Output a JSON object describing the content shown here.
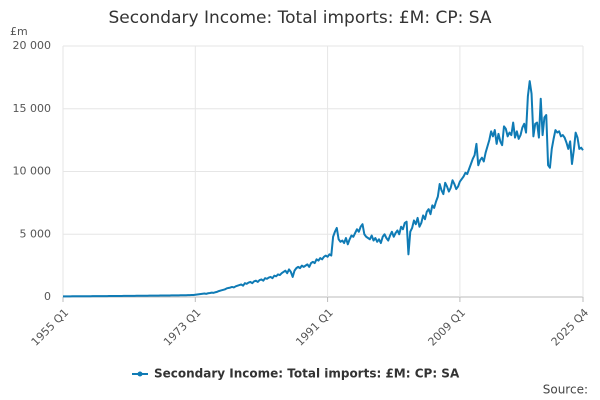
{
  "chart_data": {
    "type": "line",
    "title": "Secondary Income: Total imports: £M: CP: SA",
    "y_unit": "£m",
    "source": "Source:",
    "categories": [
      "1955 Q1",
      null,
      null,
      null,
      null,
      null,
      null,
      null,
      null,
      null,
      null,
      null,
      null,
      null,
      null,
      null,
      null,
      null,
      null,
      null,
      null,
      null,
      null,
      null,
      null,
      null,
      null,
      null,
      null,
      null,
      null,
      null,
      null,
      null,
      null,
      null,
      null,
      null,
      null,
      null,
      null,
      null,
      null,
      null,
      null,
      null,
      null,
      null,
      null,
      null,
      null,
      null,
      null,
      null,
      null,
      null,
      null,
      null,
      null,
      null,
      null,
      null,
      null,
      null,
      null,
      null,
      null,
      null,
      null,
      null,
      null,
      null,
      "1973 Q1",
      null,
      null,
      null,
      null,
      null,
      null,
      null,
      null,
      null,
      null,
      null,
      null,
      null,
      null,
      null,
      null,
      null,
      null,
      null,
      null,
      null,
      null,
      null,
      null,
      null,
      null,
      null,
      null,
      null,
      null,
      null,
      null,
      null,
      null,
      null,
      null,
      null,
      null,
      null,
      null,
      null,
      null,
      null,
      null,
      null,
      null,
      null,
      null,
      null,
      null,
      null,
      null,
      null,
      null,
      null,
      null,
      null,
      null,
      null,
      null,
      null,
      null,
      null,
      null,
      null,
      null,
      null,
      null,
      null,
      null,
      null,
      "1991 Q1",
      null,
      null,
      null,
      null,
      null,
      null,
      null,
      null,
      null,
      null,
      null,
      null,
      null,
      null,
      null,
      null,
      null,
      null,
      null,
      null,
      null,
      null,
      null,
      null,
      null,
      null,
      null,
      null,
      null,
      null,
      null,
      null,
      null,
      null,
      null,
      null,
      null,
      null,
      null,
      null,
      null,
      null,
      null,
      null,
      null,
      null,
      null,
      null,
      null,
      null,
      null,
      null,
      null,
      null,
      null,
      null,
      null,
      null,
      null,
      null,
      null,
      null,
      null,
      null,
      null,
      null,
      null,
      null,
      null,
      null,
      null,
      "2009 Q1",
      null,
      null,
      null,
      null,
      null,
      null,
      null,
      null,
      null,
      null,
      null,
      null,
      null,
      null,
      null,
      null,
      null,
      null,
      null,
      null,
      null,
      null,
      null,
      null,
      null,
      null,
      null,
      null,
      null,
      null,
      null,
      null,
      null,
      null,
      null,
      null,
      null,
      null,
      null,
      null,
      null,
      null,
      null,
      null,
      null,
      null,
      null,
      null,
      null,
      null,
      null,
      null,
      null,
      null,
      null,
      null,
      null,
      null,
      null,
      null,
      null,
      null,
      null,
      null,
      null,
      null,
      "2025 Q4"
    ],
    "series": [
      {
        "name": "Secondary Income: Total imports: £M: CP: SA",
        "color": "#0f7bb5",
        "values": [
          50,
          51,
          53,
          52,
          54,
          55,
          56,
          55,
          57,
          58,
          60,
          59,
          61,
          62,
          63,
          64,
          65,
          66,
          68,
          67,
          69,
          70,
          72,
          71,
          73,
          75,
          76,
          77,
          78,
          80,
          81,
          80,
          83,
          85,
          86,
          88,
          89,
          90,
          92,
          93,
          95,
          96,
          98,
          99,
          100,
          102,
          104,
          105,
          107,
          108,
          110,
          112,
          113,
          115,
          117,
          119,
          120,
          122,
          124,
          126,
          128,
          130,
          132,
          134,
          136,
          138,
          140,
          143,
          146,
          150,
          155,
          160,
          180,
          200,
          220,
          240,
          260,
          280,
          250,
          300,
          320,
          350,
          330,
          380,
          420,
          480,
          520,
          560,
          600,
          680,
          720,
          750,
          800,
          760,
          850,
          900,
          950,
          1000,
          900,
          1100,
          1050,
          1150,
          1200,
          1100,
          1250,
          1300,
          1200,
          1350,
          1400,
          1300,
          1500,
          1450,
          1550,
          1600,
          1500,
          1700,
          1650,
          1800,
          1750,
          1900,
          2000,
          2100,
          1900,
          2200,
          2000,
          1600,
          2100,
          2300,
          2400,
          2300,
          2500,
          2400,
          2500,
          2600,
          2400,
          2700,
          2800,
          2700,
          3000,
          2900,
          3100,
          3000,
          3200,
          3300,
          3200,
          3400,
          3300,
          4800,
          5200,
          5500,
          4600,
          4400,
          4500,
          4300,
          4700,
          4200,
          4600,
          4900,
          4800,
          5100,
          5400,
          5200,
          5600,
          5800,
          5000,
          4800,
          4700,
          4600,
          4900,
          4500,
          4700,
          4400,
          4600,
          4300,
          4800,
          5000,
          4700,
          4500,
          4900,
          5200,
          4800,
          5100,
          5300,
          5000,
          5600,
          5400,
          5900,
          6000,
          3400,
          5200,
          5500,
          6100,
          5800,
          6300,
          5600,
          5900,
          6500,
          6200,
          6800,
          7000,
          6600,
          7300,
          7100,
          7600,
          8000,
          9000,
          8500,
          8200,
          9100,
          8800,
          8400,
          8700,
          9300,
          9000,
          8600,
          8800,
          9200,
          9400,
          9600,
          9900,
          9800,
          10200,
          10600,
          11000,
          11300,
          12200,
          10500,
          10900,
          11100,
          10800,
          11500,
          12000,
          12500,
          13200,
          12800,
          13300,
          12200,
          13000,
          12400,
          12100,
          13600,
          13400,
          12800,
          13100,
          12900,
          13900,
          12700,
          13200,
          12600,
          12900,
          13500,
          13800,
          13100,
          16000,
          17200,
          16200,
          12800,
          13800,
          13900,
          12700,
          15800,
          12900,
          14300,
          14500,
          10500,
          10300,
          11800,
          12600,
          13300,
          13100,
          13200,
          12800,
          12900,
          12700,
          12300,
          11800,
          12400,
          10600,
          11700,
          13100,
          12700,
          11800,
          11900,
          11700
        ]
      }
    ],
    "ylim": [
      0,
      20000
    ],
    "yticks": [
      {
        "value": 0,
        "label": "0"
      },
      {
        "value": 5000,
        "label": "5 000"
      },
      {
        "value": 10000,
        "label": "10 000"
      },
      {
        "value": 15000,
        "label": "15 000"
      },
      {
        "value": 20000,
        "label": "20 000"
      }
    ],
    "grid": true,
    "legend": "bottom"
  }
}
